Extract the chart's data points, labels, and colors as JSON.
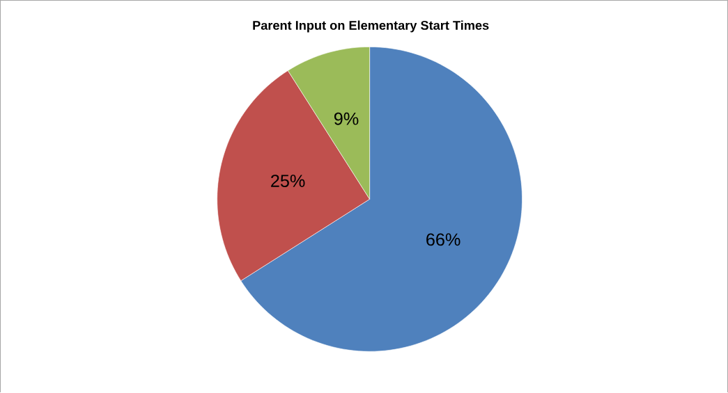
{
  "chart_data": {
    "type": "pie",
    "title": "Parent Input on Elementary Start Times",
    "categories": [
      null,
      null,
      null
    ],
    "values": [
      66,
      25,
      9
    ],
    "value_labels": [
      "66%",
      "25%",
      "9%"
    ],
    "colors": [
      "#4f81bd",
      "#c0504d",
      "#9bbb59"
    ]
  }
}
